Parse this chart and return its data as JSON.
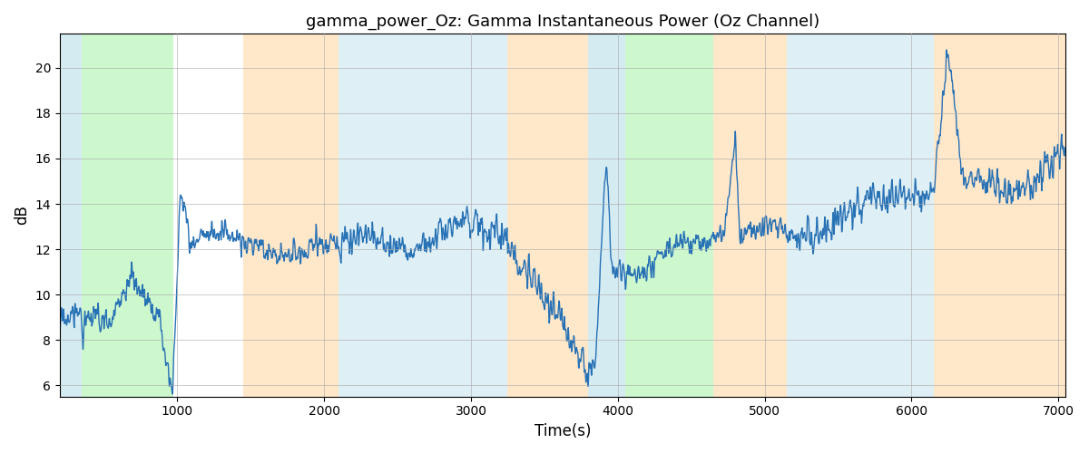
{
  "title": "gamma_power_Oz: Gamma Instantaneous Power (Oz Channel)",
  "xlabel": "Time(s)",
  "ylabel": "dB",
  "xlim": [
    200,
    7050
  ],
  "ylim": [
    5.5,
    21.5
  ],
  "yticks": [
    6,
    8,
    10,
    12,
    14,
    16,
    18,
    20
  ],
  "xticks": [
    1000,
    2000,
    3000,
    4000,
    5000,
    6000,
    7000
  ],
  "line_color": "#2771b5",
  "line_width": 1.0,
  "bg_color": "#ffffff",
  "grid_color": "#aaaaaa",
  "shaded_regions": [
    {
      "xmin": 200,
      "xmax": 350,
      "color": "#add8e6",
      "alpha": 0.5
    },
    {
      "xmin": 350,
      "xmax": 970,
      "color": "#90ee90",
      "alpha": 0.45
    },
    {
      "xmin": 1450,
      "xmax": 2100,
      "color": "#ffd59e",
      "alpha": 0.55
    },
    {
      "xmin": 2100,
      "xmax": 3250,
      "color": "#add8e6",
      "alpha": 0.4
    },
    {
      "xmin": 3250,
      "xmax": 3800,
      "color": "#ffd59e",
      "alpha": 0.55
    },
    {
      "xmin": 3800,
      "xmax": 4050,
      "color": "#add8e6",
      "alpha": 0.5
    },
    {
      "xmin": 4050,
      "xmax": 4650,
      "color": "#90ee90",
      "alpha": 0.45
    },
    {
      "xmin": 4650,
      "xmax": 5150,
      "color": "#ffd59e",
      "alpha": 0.55
    },
    {
      "xmin": 5150,
      "xmax": 6150,
      "color": "#add8e6",
      "alpha": 0.4
    },
    {
      "xmin": 6150,
      "xmax": 7100,
      "color": "#ffd59e",
      "alpha": 0.55
    }
  ],
  "seed": 17
}
